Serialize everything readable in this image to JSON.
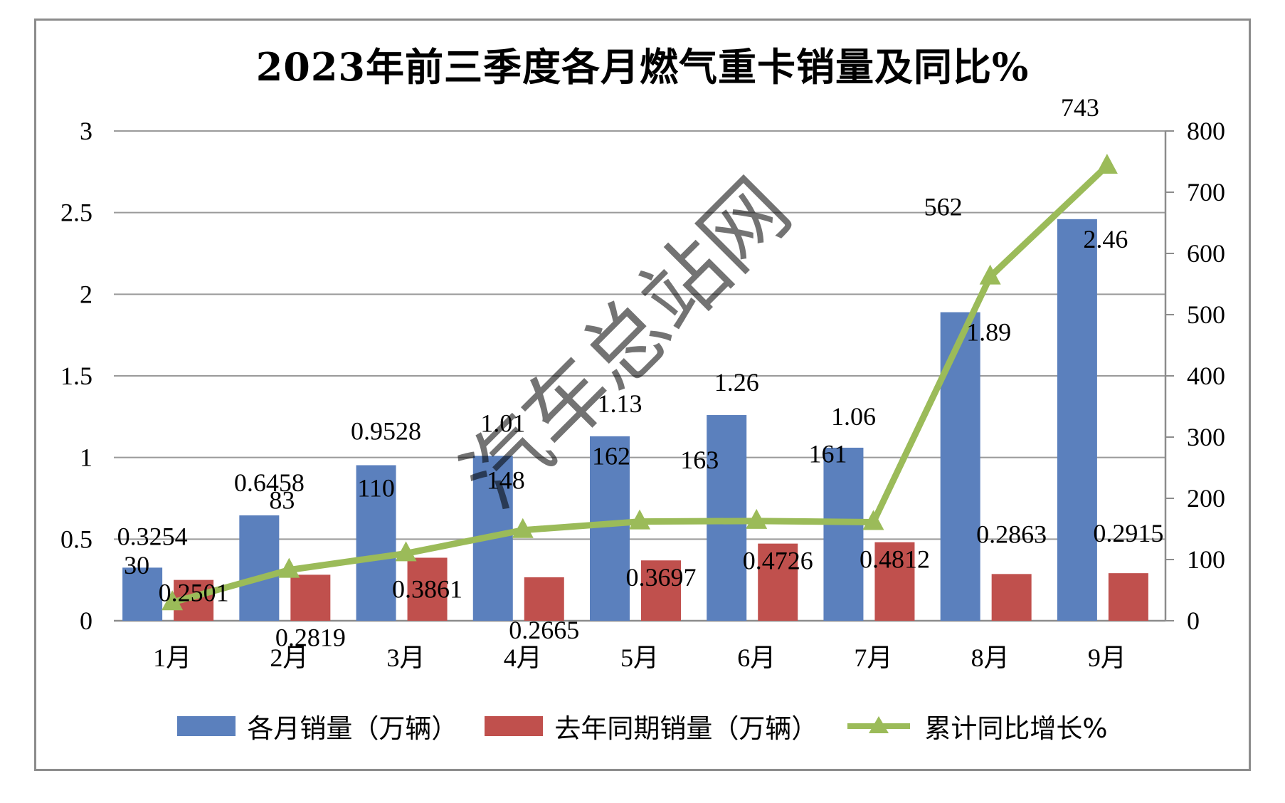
{
  "chart_data": {
    "type": "bar+line",
    "title": "2023年前三季度各月燃气重卡销量及同比%",
    "categories": [
      "1月",
      "2月",
      "3月",
      "4月",
      "5月",
      "6月",
      "7月",
      "8月",
      "9月"
    ],
    "y_left": {
      "ticks": [
        "0",
        "0.5",
        "1",
        "1.5",
        "2",
        "2.5",
        "3"
      ],
      "range": [
        0,
        3
      ]
    },
    "y_right": {
      "ticks": [
        "0",
        "100",
        "200",
        "300",
        "400",
        "500",
        "600",
        "700",
        "800"
      ],
      "range": [
        0,
        800
      ]
    },
    "grid": true,
    "legend_position": "bottom",
    "series": [
      {
        "name": "各月销量（万辆）",
        "kind": "bar",
        "axis": "left",
        "color": "#5b80bd",
        "values": [
          0.3254,
          0.6458,
          0.9528,
          1.01,
          1.13,
          1.26,
          1.06,
          1.89,
          2.46
        ],
        "labels": [
          "0.3254",
          "0.6458",
          "0.9528",
          "1.01",
          "1.13",
          "1.26",
          "1.06",
          "1.89",
          "2.46"
        ]
      },
      {
        "name": "去年同期销量（万辆）",
        "kind": "bar",
        "axis": "left",
        "color": "#c0504d",
        "values": [
          0.2501,
          0.2819,
          0.3861,
          0.2665,
          0.3697,
          0.4726,
          0.4812,
          0.2863,
          0.2915
        ],
        "labels": [
          "0.2501",
          "0.2819",
          "0.3861",
          "0.2665",
          "0.3697",
          "0.4726",
          "0.4812",
          "0.2863",
          "0.2915"
        ]
      },
      {
        "name": "累计同比增长%",
        "kind": "line",
        "axis": "right",
        "color": "#9bbb59",
        "marker": "triangle",
        "values": [
          30,
          83,
          110,
          148,
          162,
          163,
          161,
          562,
          743
        ],
        "labels": [
          "30",
          "83",
          "110",
          "148",
          "162",
          "163",
          "161",
          "562",
          "743"
        ]
      }
    ],
    "watermark": "汽车总站网"
  }
}
